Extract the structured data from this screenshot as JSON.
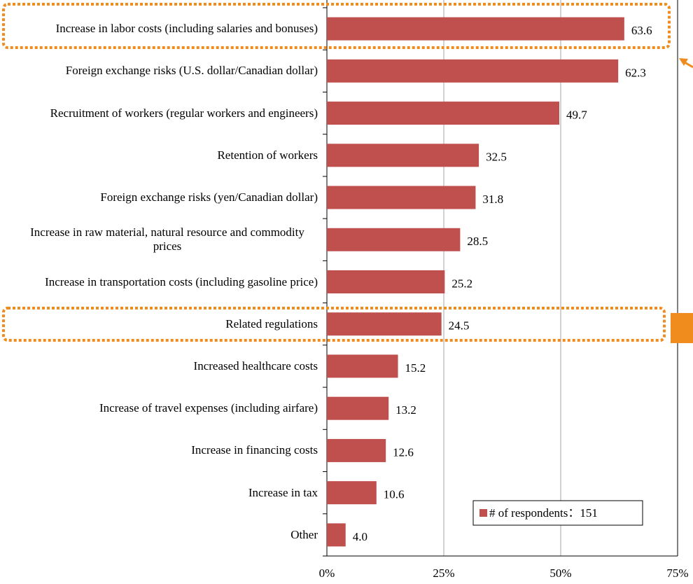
{
  "chart_data": {
    "type": "bar",
    "orientation": "horizontal",
    "categories": [
      "Increase in labor costs (including salaries and bonuses)",
      "Foreign exchange risks (U.S. dollar/Canadian dollar)",
      "Recruitment of workers (regular workers and engineers)",
      "Retention of workers",
      "Foreign exchange risks (yen/Canadian dollar)",
      "Increase in raw material, natural resource and commodity prices",
      "Increase in transportation costs (including gasoline price)",
      "Related regulations",
      "Increased healthcare costs",
      "Increase of travel expenses (including airfare)",
      "Increase in financing costs",
      "Increase in tax",
      "Other"
    ],
    "series": [
      {
        "name": "# of respondents：151",
        "color": "#c0504d",
        "values": [
          63.6,
          62.3,
          49.7,
          32.5,
          31.8,
          28.5,
          25.2,
          24.5,
          15.2,
          13.2,
          12.6,
          10.6,
          4.0
        ],
        "value_labels": [
          "63.6",
          "62.3",
          "49.7",
          "32.5",
          "31.8",
          "28.5",
          "25.2",
          "24.5",
          "15.2",
          "13.2",
          "12.6",
          "10.6",
          "4.0"
        ]
      }
    ],
    "xlim": [
      0,
      75
    ],
    "xticks": [
      {
        "value": 0,
        "label": "0%"
      },
      {
        "value": 25,
        "label": "25%"
      },
      {
        "value": 50,
        "label": "50%"
      },
      {
        "value": 75,
        "label": "75%"
      }
    ],
    "grid": true,
    "legend": "lower right"
  }
}
